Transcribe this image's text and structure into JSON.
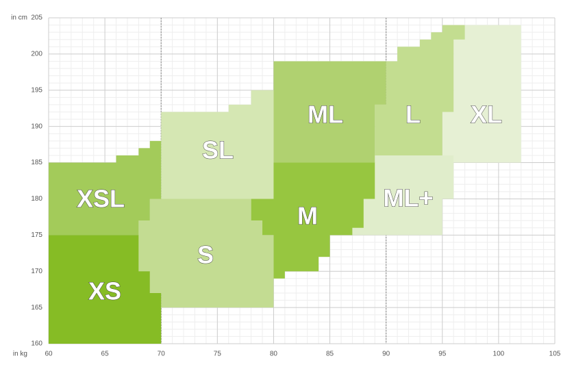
{
  "chart_data": {
    "type": "region",
    "xlabel": "in kg",
    "ylabel": "in cm",
    "xlim": [
      60,
      105
    ],
    "xticks": [
      60,
      65,
      70,
      75,
      80,
      85,
      90,
      95,
      100,
      105
    ],
    "ylim": [
      160,
      205
    ],
    "yticks": [
      160,
      165,
      170,
      175,
      180,
      185,
      190,
      195,
      200,
      205
    ],
    "grid": true,
    "minor_grid": true,
    "highlight_x": [
      70,
      90
    ],
    "series": [
      {
        "name": "XL",
        "color": "#e6f0d4",
        "x": [
          95,
          102,
          102,
          97,
          97,
          96,
          96,
          95
        ],
        "y": [
          185,
          185,
          204,
          204,
          202,
          202,
          192,
          192
        ]
      },
      {
        "name": "ML+",
        "color": "#e0edcb",
        "x": [
          87,
          95,
          95,
          96,
          96,
          89,
          89,
          88,
          88,
          87
        ],
        "y": [
          175,
          175,
          180,
          180,
          186,
          186,
          180,
          180,
          176,
          176
        ]
      },
      {
        "name": "L",
        "color": "#c3dd90",
        "x": [
          89,
          95,
          95,
          96,
          96,
          97,
          97,
          95,
          95,
          94,
          94,
          93,
          93,
          91,
          91,
          90,
          90,
          89
        ],
        "y": [
          186,
          186,
          192,
          192,
          202,
          202,
          204,
          204,
          203,
          203,
          202,
          202,
          201,
          201,
          199,
          199,
          193,
          193
        ]
      },
      {
        "name": "ML",
        "color": "#b0d170",
        "x": [
          80,
          89,
          89,
          90,
          90,
          80
        ],
        "y": [
          185,
          185,
          193,
          193,
          199,
          199
        ]
      },
      {
        "name": "SL",
        "color": "#d5e7b3",
        "x": [
          70,
          80,
          80,
          78,
          78,
          76,
          76,
          70
        ],
        "y": [
          180,
          180,
          195,
          195,
          193,
          193,
          192,
          192
        ]
      },
      {
        "name": "M",
        "color": "#97c640",
        "x": [
          78,
          80,
          80,
          89,
          89,
          88,
          88,
          87,
          87,
          85,
          85,
          84,
          84,
          81,
          81,
          80,
          80,
          79,
          79,
          78
        ],
        "y": [
          180,
          180,
          185,
          185,
          180,
          180,
          176,
          176,
          175,
          175,
          172,
          172,
          170,
          170,
          169,
          169,
          175,
          175,
          177,
          177
        ]
      },
      {
        "name": "S",
        "color": "#c3dc92",
        "x": [
          70,
          80,
          80,
          79,
          79,
          78,
          78,
          69,
          69,
          68,
          68,
          69,
          69,
          70
        ],
        "y": [
          165,
          165,
          175,
          175,
          177,
          177,
          180,
          180,
          177,
          177,
          170,
          170,
          167,
          167
        ]
      },
      {
        "name": "XSL",
        "color": "#a3cb5a",
        "x": [
          60,
          68,
          68,
          69,
          69,
          70,
          70,
          69,
          69,
          68,
          68,
          66,
          66,
          60
        ],
        "y": [
          175,
          175,
          177,
          177,
          180,
          180,
          188,
          188,
          187,
          187,
          186,
          186,
          185,
          185
        ]
      },
      {
        "name": "XS",
        "color": "#86bc25",
        "x": [
          60,
          70,
          70,
          69,
          69,
          68,
          68,
          60
        ],
        "y": [
          160,
          160,
          167,
          167,
          170,
          170,
          175,
          175
        ]
      }
    ]
  }
}
